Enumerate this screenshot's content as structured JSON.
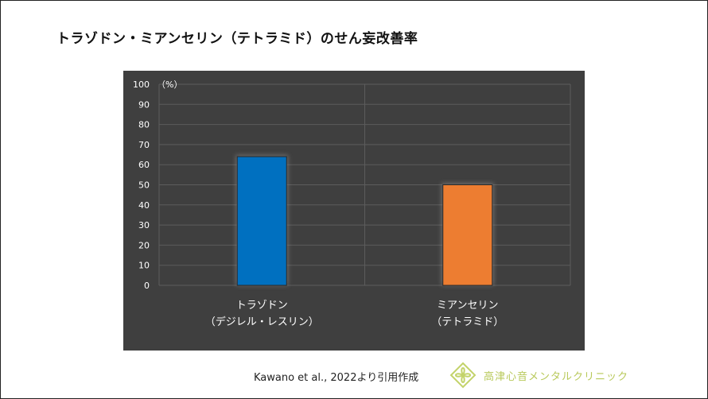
{
  "slide": {
    "title": "トラゾドン・ミアンセリン（テトラミド）のせん妄改善率",
    "citation": "Kawano et al., 2022より引用作成",
    "clinic_name": "高津心音メンタルクリニック",
    "clinic_logo_icon": "clover-leaf-icon"
  },
  "colors": {
    "panel_bg": "#3f3f3f",
    "grid": "#5c5c5c",
    "axis_text": "#ffffff",
    "bar_1": "#0070c0",
    "bar_2": "#ed7d31",
    "logo": "#c3d36a"
  },
  "chart_data": {
    "type": "bar",
    "title": "",
    "unit_label": "（%）",
    "ylim": [
      0,
      100
    ],
    "yticks": [
      0,
      10,
      20,
      30,
      40,
      50,
      60,
      70,
      80,
      90,
      100
    ],
    "categories": [
      [
        "トラゾドン",
        "（デジレル・レスリン）"
      ],
      [
        "ミアンセリン",
        "（テトラミド）"
      ]
    ],
    "values": [
      64,
      50
    ],
    "bar_colors": [
      "#0070c0",
      "#ed7d31"
    ],
    "grid": true
  }
}
